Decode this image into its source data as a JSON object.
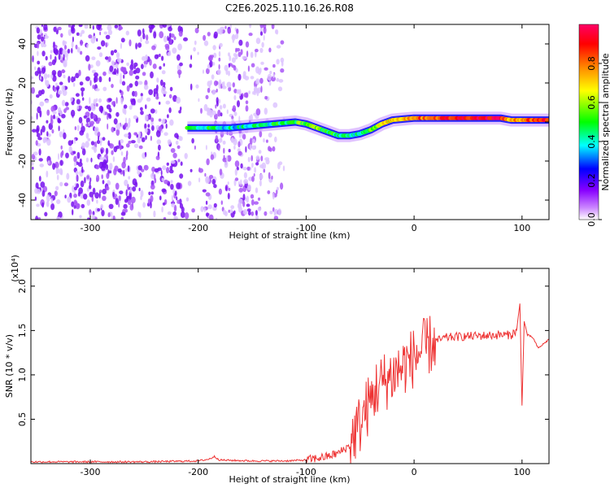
{
  "title": "C2E6.2025.110.16.26.R08",
  "chart_data": [
    {
      "type": "heatmap",
      "title": "C2E6.2025.110.16.26.R08",
      "xlabel": "Height of straight line (km)",
      "ylabel": "Frequency (Hz)",
      "xlim": [
        -355,
        125
      ],
      "ylim": [
        -50,
        50
      ],
      "x_ticks": [
        -300,
        -200,
        -100,
        0,
        100
      ],
      "y_ticks": [
        -40,
        -20,
        0,
        20,
        40
      ],
      "colorbar": {
        "label": "Normalized spectral amplitude",
        "range": [
          0,
          1
        ],
        "ticks": [
          "0.0",
          "0.2",
          "0.4",
          "0.6",
          "0.8"
        ],
        "colors": [
          "#ffffff",
          "#9900ff",
          "#0000ff",
          "#00ffff",
          "#00ff00",
          "#ffff00",
          "#ff8800",
          "#ff0000",
          "#ff0066"
        ]
      },
      "signal_track": {
        "x": [
          -210,
          -190,
          -170,
          -150,
          -130,
          -110,
          -100,
          -90,
          -80,
          -70,
          -60,
          -50,
          -40,
          -30,
          -20,
          -10,
          0,
          20,
          40,
          60,
          80,
          90,
          100,
          110,
          125
        ],
        "frequency": [
          -3,
          -3,
          -3,
          -2,
          -1,
          0,
          -1,
          -3,
          -5,
          -7,
          -7,
          -6,
          -4,
          -1,
          1,
          1.5,
          2,
          2,
          2,
          2,
          2,
          1,
          1,
          1,
          1
        ],
        "amplitude": [
          0.45,
          0.45,
          0.4,
          0.4,
          0.45,
          0.5,
          0.55,
          0.55,
          0.5,
          0.45,
          0.4,
          0.45,
          0.55,
          0.65,
          0.7,
          0.75,
          0.8,
          0.85,
          0.9,
          0.95,
          0.95,
          0.7,
          0.8,
          0.85,
          0.9
        ]
      },
      "noise_region_x": [
        -355,
        -120
      ]
    },
    {
      "type": "line",
      "xlabel": "Height of straight line (km)",
      "ylabel": "SNR (10 * v/v)",
      "y_multiplier": "(x10⁴)",
      "xlim": [
        -355,
        125
      ],
      "ylim": [
        0,
        2.2
      ],
      "x_ticks": [
        -300,
        -200,
        -100,
        0,
        100
      ],
      "y_ticks": [
        "0.5",
        "1.0",
        "1.5",
        "2.0"
      ],
      "series": [
        {
          "color": "#ee3333",
          "x": [
            -355,
            -300,
            -250,
            -200,
            -190,
            -185,
            -180,
            -150,
            -120,
            -100,
            -90,
            -80,
            -70,
            -60,
            -55,
            -50,
            -45,
            -40,
            -35,
            -30,
            -25,
            -20,
            -15,
            -10,
            -5,
            0,
            5,
            10,
            20,
            30,
            40,
            60,
            80,
            90,
            95,
            98,
            100,
            102,
            105,
            110,
            115,
            120,
            125
          ],
          "y": [
            0.02,
            0.02,
            0.02,
            0.03,
            0.05,
            0.08,
            0.04,
            0.03,
            0.03,
            0.04,
            0.06,
            0.08,
            0.12,
            0.2,
            0.35,
            0.45,
            0.6,
            0.7,
            0.85,
            0.9,
            0.95,
            1.0,
            1.05,
            1.1,
            1.15,
            1.2,
            1.25,
            1.3,
            1.38,
            1.42,
            1.43,
            1.44,
            1.45,
            1.45,
            1.5,
            1.8,
            0.65,
            1.6,
            1.45,
            1.42,
            1.3,
            1.35,
            1.4
          ]
        }
      ]
    }
  ]
}
